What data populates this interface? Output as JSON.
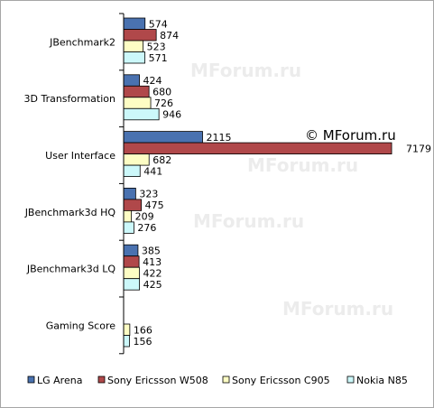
{
  "watermark": "MForum.ru",
  "copyright": "© MForum.ru",
  "chart_data": {
    "type": "bar",
    "orientation": "horizontal",
    "categories": [
      "JBenchmark2",
      "3D Transformation",
      "User Interface",
      "JBenchmark3d HQ",
      "JBenchmark3d LQ",
      "Gaming Score"
    ],
    "series": [
      {
        "name": "LG Arena",
        "color": "#4a72b0",
        "values": [
          574,
          424,
          2115,
          323,
          385,
          null
        ]
      },
      {
        "name": "Sony Ericsson W508",
        "color": "#b0484a",
        "values": [
          874,
          680,
          7179,
          475,
          413,
          null
        ]
      },
      {
        "name": "Sony Ericsson C905",
        "color": "#fdfdc4",
        "values": [
          523,
          726,
          682,
          209,
          422,
          166
        ]
      },
      {
        "name": "Nokia N85",
        "color": "#ccf8fa",
        "values": [
          571,
          946,
          441,
          276,
          425,
          156
        ]
      }
    ],
    "xlim": [
      0,
      8000
    ],
    "grid": false,
    "legend": "bottom"
  }
}
